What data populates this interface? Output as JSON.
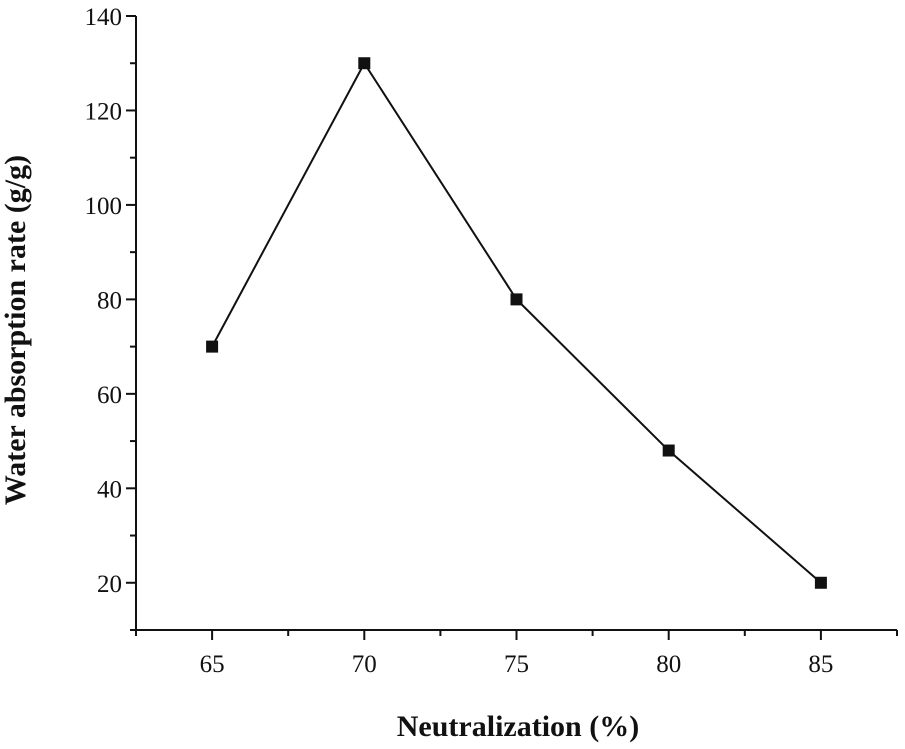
{
  "chart_data": {
    "type": "line",
    "title": "",
    "xlabel": "Neutralization (%)",
    "ylabel": "Water absorption rate (g/g)",
    "x": [
      65,
      70,
      75,
      80,
      85
    ],
    "series": [
      {
        "name": "Water absorption rate",
        "values": [
          70,
          130,
          80,
          48,
          20
        ]
      }
    ],
    "xlim": [
      62.5,
      87.5
    ],
    "ylim": [
      10,
      140
    ],
    "xticks": [
      65,
      70,
      75,
      80,
      85
    ],
    "yticks": [
      20,
      40,
      60,
      80,
      100,
      120,
      140
    ],
    "grid": false,
    "legend": "none",
    "marker": "square",
    "line_color": "#111111"
  }
}
